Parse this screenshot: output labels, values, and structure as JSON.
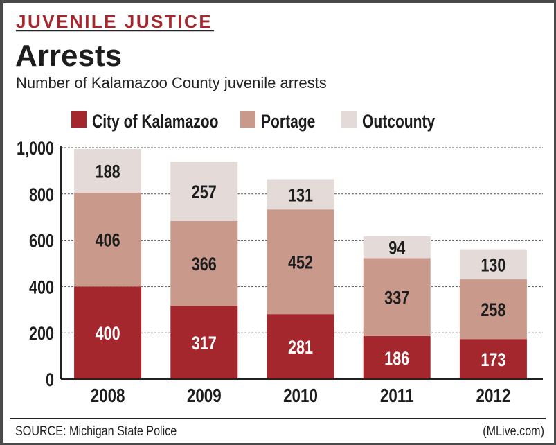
{
  "kicker": "JUVENILE JUSTICE",
  "title": "Arrests",
  "subtitle": "Number of Kalamazoo County juvenile arrests",
  "source": "SOURCE: Michigan State Police",
  "credit": "(MLive.com)",
  "colors": {
    "city": "#a4272d",
    "portage": "#c99a8c",
    "outcounty": "#e4dad7",
    "kicker": "#a4272d"
  },
  "chart_data": {
    "type": "bar",
    "stacked": true,
    "title": "Arrests",
    "xlabel": "",
    "ylabel": "",
    "ylim": [
      0,
      1000
    ],
    "yticks": [
      0,
      200,
      400,
      600,
      800,
      1000
    ],
    "ytick_labels": [
      "0",
      "200",
      "400",
      "600",
      "800",
      "1,000"
    ],
    "grid": true,
    "legend": "top",
    "categories": [
      "2008",
      "2009",
      "2010",
      "2011",
      "2012"
    ],
    "series": [
      {
        "name": "City of Kalamazoo",
        "key": "city",
        "values": [
          400,
          317,
          281,
          186,
          173
        ]
      },
      {
        "name": "Portage",
        "key": "portage",
        "values": [
          406,
          366,
          452,
          337,
          258
        ]
      },
      {
        "name": "Outcounty",
        "key": "outcounty",
        "values": [
          188,
          257,
          131,
          94,
          130
        ]
      }
    ]
  }
}
